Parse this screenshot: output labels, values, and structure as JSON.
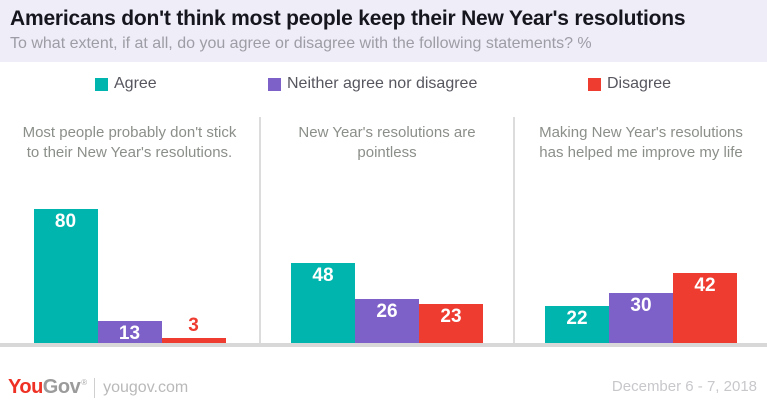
{
  "header": {
    "title": "Americans don't think most people keep their New Year's resolutions",
    "subtitle": "To what extent, if at all, do you agree or disagree with the following statements? %"
  },
  "legend": [
    {
      "label": "Agree",
      "color": "#00b5ad"
    },
    {
      "label": "Neither agree nor disagree",
      "color": "#7d61c9"
    },
    {
      "label": "Disagree",
      "color": "#ee3c30"
    }
  ],
  "chart_data": {
    "type": "bar",
    "title": "Americans don't think most people keep their New Year's resolutions",
    "subtitle": "To what extent, if at all, do you agree or disagree with the following statements? %",
    "unit": "%",
    "ylim": [
      0,
      100
    ],
    "grid": false,
    "legend_position": "top",
    "series_names": [
      "Agree",
      "Neither agree nor disagree",
      "Disagree"
    ],
    "series_colors": [
      "#00b5ad",
      "#7d61c9",
      "#ee3c30"
    ],
    "panels": [
      {
        "question": "Most people probably don't stick to their New Year's resolutions.",
        "values": [
          80,
          13,
          3
        ]
      },
      {
        "question": "New Year's resolutions are pointless",
        "values": [
          48,
          26,
          23
        ]
      },
      {
        "question": "Making New Year's resolutions has helped me improve my life",
        "values": [
          22,
          30,
          42
        ]
      }
    ]
  },
  "footer": {
    "logo_you": "You",
    "logo_gov": "Gov",
    "logo_mark": "®",
    "site": "yougov.com",
    "date": "December 6 - 7, 2018"
  }
}
